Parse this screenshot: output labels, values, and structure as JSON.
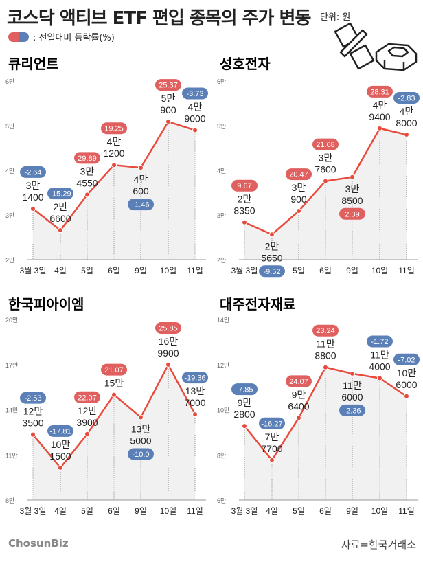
{
  "header": {
    "title": "코스닥 액티브 ETF 편입 종목의 주가 변동",
    "unit": "단위: 원",
    "legend_label": ": 전일대비 등락률(%)"
  },
  "colors": {
    "up": "#e06060",
    "down": "#5b7fb7",
    "line": "#e84a3c",
    "area": "#f1f1f1"
  },
  "footer": {
    "logo": "ChosunBiz",
    "source": "자료=한국거래소"
  },
  "chart_data": [
    {
      "type": "line",
      "title": "큐리언트",
      "categories": [
        "3월 3일",
        "4일",
        "5일",
        "6일",
        "9일",
        "10일",
        "11일"
      ],
      "y_tick_labels": [
        "2만",
        "3만",
        "4만",
        "5만",
        "6만"
      ],
      "ylim": [
        20000,
        60000
      ],
      "values": [
        31400,
        26600,
        34550,
        41200,
        40600,
        50900,
        49000
      ],
      "value_labels": [
        [
          "3만",
          "1400"
        ],
        [
          "2만",
          "6600"
        ],
        [
          "3만",
          "4550"
        ],
        [
          "4만",
          "1200"
        ],
        [
          "4만",
          "600"
        ],
        [
          "5만",
          "900"
        ],
        [
          "4만",
          "9000"
        ]
      ],
      "changes": [
        "-2.64",
        "-15.29",
        "29.89",
        "19.25",
        "-1.46",
        "25.37",
        "-3.73"
      ]
    },
    {
      "type": "line",
      "title": "성호전자",
      "categories": [
        "3월 3일",
        "4일",
        "5일",
        "6일",
        "9일",
        "10일",
        "11일"
      ],
      "y_tick_labels": [
        "2만",
        "3만",
        "4만",
        "5만",
        "6만"
      ],
      "ylim": [
        20000,
        60000
      ],
      "values": [
        28350,
        25650,
        30900,
        37600,
        38500,
        49400,
        48000
      ],
      "value_labels": [
        [
          "2만",
          "8350"
        ],
        [
          "2만",
          "5650"
        ],
        [
          "3만",
          "900"
        ],
        [
          "3만",
          "7600"
        ],
        [
          "3만",
          "8500"
        ],
        [
          "4만",
          "9400"
        ],
        [
          "4만",
          "8000"
        ]
      ],
      "changes": [
        "9.67",
        "-9.52",
        "20.47",
        "21.68",
        "2.39",
        "28.31",
        "-2.83"
      ]
    },
    {
      "type": "line",
      "title": "한국피아이엠",
      "categories": [
        "3월 3일",
        "4일",
        "5일",
        "6일",
        "9일",
        "10일",
        "11일"
      ],
      "y_tick_labels": [
        "8만",
        "11만",
        "14만",
        "17만",
        "20만"
      ],
      "ylim": [
        80000,
        200000
      ],
      "values": [
        123500,
        101500,
        123900,
        150000,
        135000,
        169900,
        137000
      ],
      "value_labels": [
        [
          "12만",
          "3500"
        ],
        [
          "10만",
          "1500"
        ],
        [
          "12만",
          "3900"
        ],
        [
          "15만"
        ],
        [
          "13만",
          "5000"
        ],
        [
          "16만",
          "9900"
        ],
        [
          "13만",
          "7000"
        ]
      ],
      "changes": [
        "-2.53",
        "-17.81",
        "22.07",
        "21.07",
        "-10.0",
        "25.85",
        "-19.36"
      ]
    },
    {
      "type": "line",
      "title": "대주전자재료",
      "categories": [
        "3월 3일",
        "4일",
        "5일",
        "6일",
        "9일",
        "10일",
        "11일"
      ],
      "y_tick_labels": [
        "6만",
        "8만",
        "10만",
        "12만",
        "14만"
      ],
      "ylim": [
        60000,
        140000
      ],
      "values": [
        92800,
        77700,
        96400,
        118800,
        116000,
        114000,
        106000
      ],
      "value_labels": [
        [
          "9만",
          "2800"
        ],
        [
          "7만",
          "7700"
        ],
        [
          "9만",
          "6400"
        ],
        [
          "11만",
          "8800"
        ],
        [
          "11만",
          "6000"
        ],
        [
          "11만",
          "4000"
        ],
        [
          "10만",
          "6000"
        ]
      ],
      "changes": [
        "-7.85",
        "-16.27",
        "24.07",
        "23.24",
        "-2.36",
        "-1.72",
        "-7.02"
      ]
    }
  ]
}
